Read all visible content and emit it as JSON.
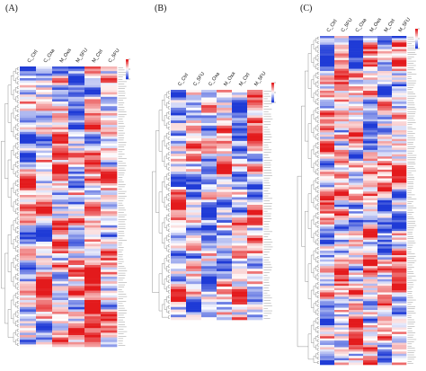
{
  "figure": {
    "panels": [
      {
        "label": "(A)"
      },
      {
        "label": "(B)"
      },
      {
        "label": "(C)"
      }
    ]
  },
  "chart_data": [
    {
      "type": "heatmap",
      "panel": "(A)",
      "columns": [
        "C_Ctrl",
        "C_Oxa",
        "M_Oxa",
        "M_5FU",
        "M_Ctrl",
        "C_5FU"
      ],
      "n_rows": 120,
      "color_scale": {
        "low": "#1f3bd6",
        "mid": "#ffffff",
        "high": "#e31a1c"
      },
      "legend": {
        "placement": "top-right"
      },
      "dendrogram": "left",
      "row_labels": "right (illegible)"
    },
    {
      "type": "heatmap",
      "panel": "(B)",
      "columns": [
        "C_Ctrl",
        "C_5FU",
        "C_Oxa",
        "M_Oxa",
        "M_Ctrl",
        "M_5FU"
      ],
      "n_rows": 90,
      "color_scale": {
        "low": "#1f3bd6",
        "mid": "#ffffff",
        "high": "#e31a1c"
      },
      "legend": {
        "placement": "top-right"
      },
      "dendrogram": "left",
      "row_labels": "right (illegible)"
    },
    {
      "type": "heatmap",
      "panel": "(C)",
      "columns": [
        "C_Ctrl",
        "C_5FU",
        "C_Oxa",
        "M_Oxa",
        "M_Ctrl",
        "M_5FU"
      ],
      "n_rows": 150,
      "color_scale": {
        "low": "#1f3bd6",
        "mid": "#ffffff",
        "high": "#e31a1c"
      },
      "legend": {
        "placement": "top-right"
      },
      "dendrogram": "left",
      "row_labels": "right (illegible)"
    }
  ]
}
